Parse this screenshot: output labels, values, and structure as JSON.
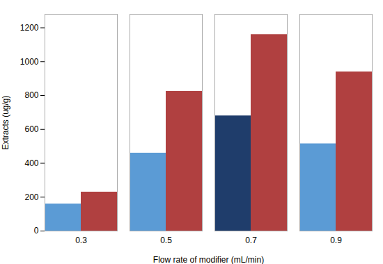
{
  "chart_data": {
    "type": "bar",
    "xlabel": "Flow rate of modifier (mL/min)",
    "ylabel": "Extracts (ug/g)",
    "categories": [
      "0.3",
      "0.5",
      "0.7",
      "0.9"
    ],
    "series": [
      {
        "colors": [
          "#5b9bd5",
          "#5b9bd5",
          "#1f3d6b",
          "#5b9bd5"
        ],
        "values": [
          160,
          460,
          680,
          515
        ]
      },
      {
        "color": "#b04040",
        "values": [
          230,
          825,
          1160,
          940
        ]
      }
    ],
    "ylim": [
      0,
      1280
    ],
    "yticks": [
      0,
      200,
      400,
      600,
      800,
      1000,
      1200
    ],
    "grid": false
  }
}
